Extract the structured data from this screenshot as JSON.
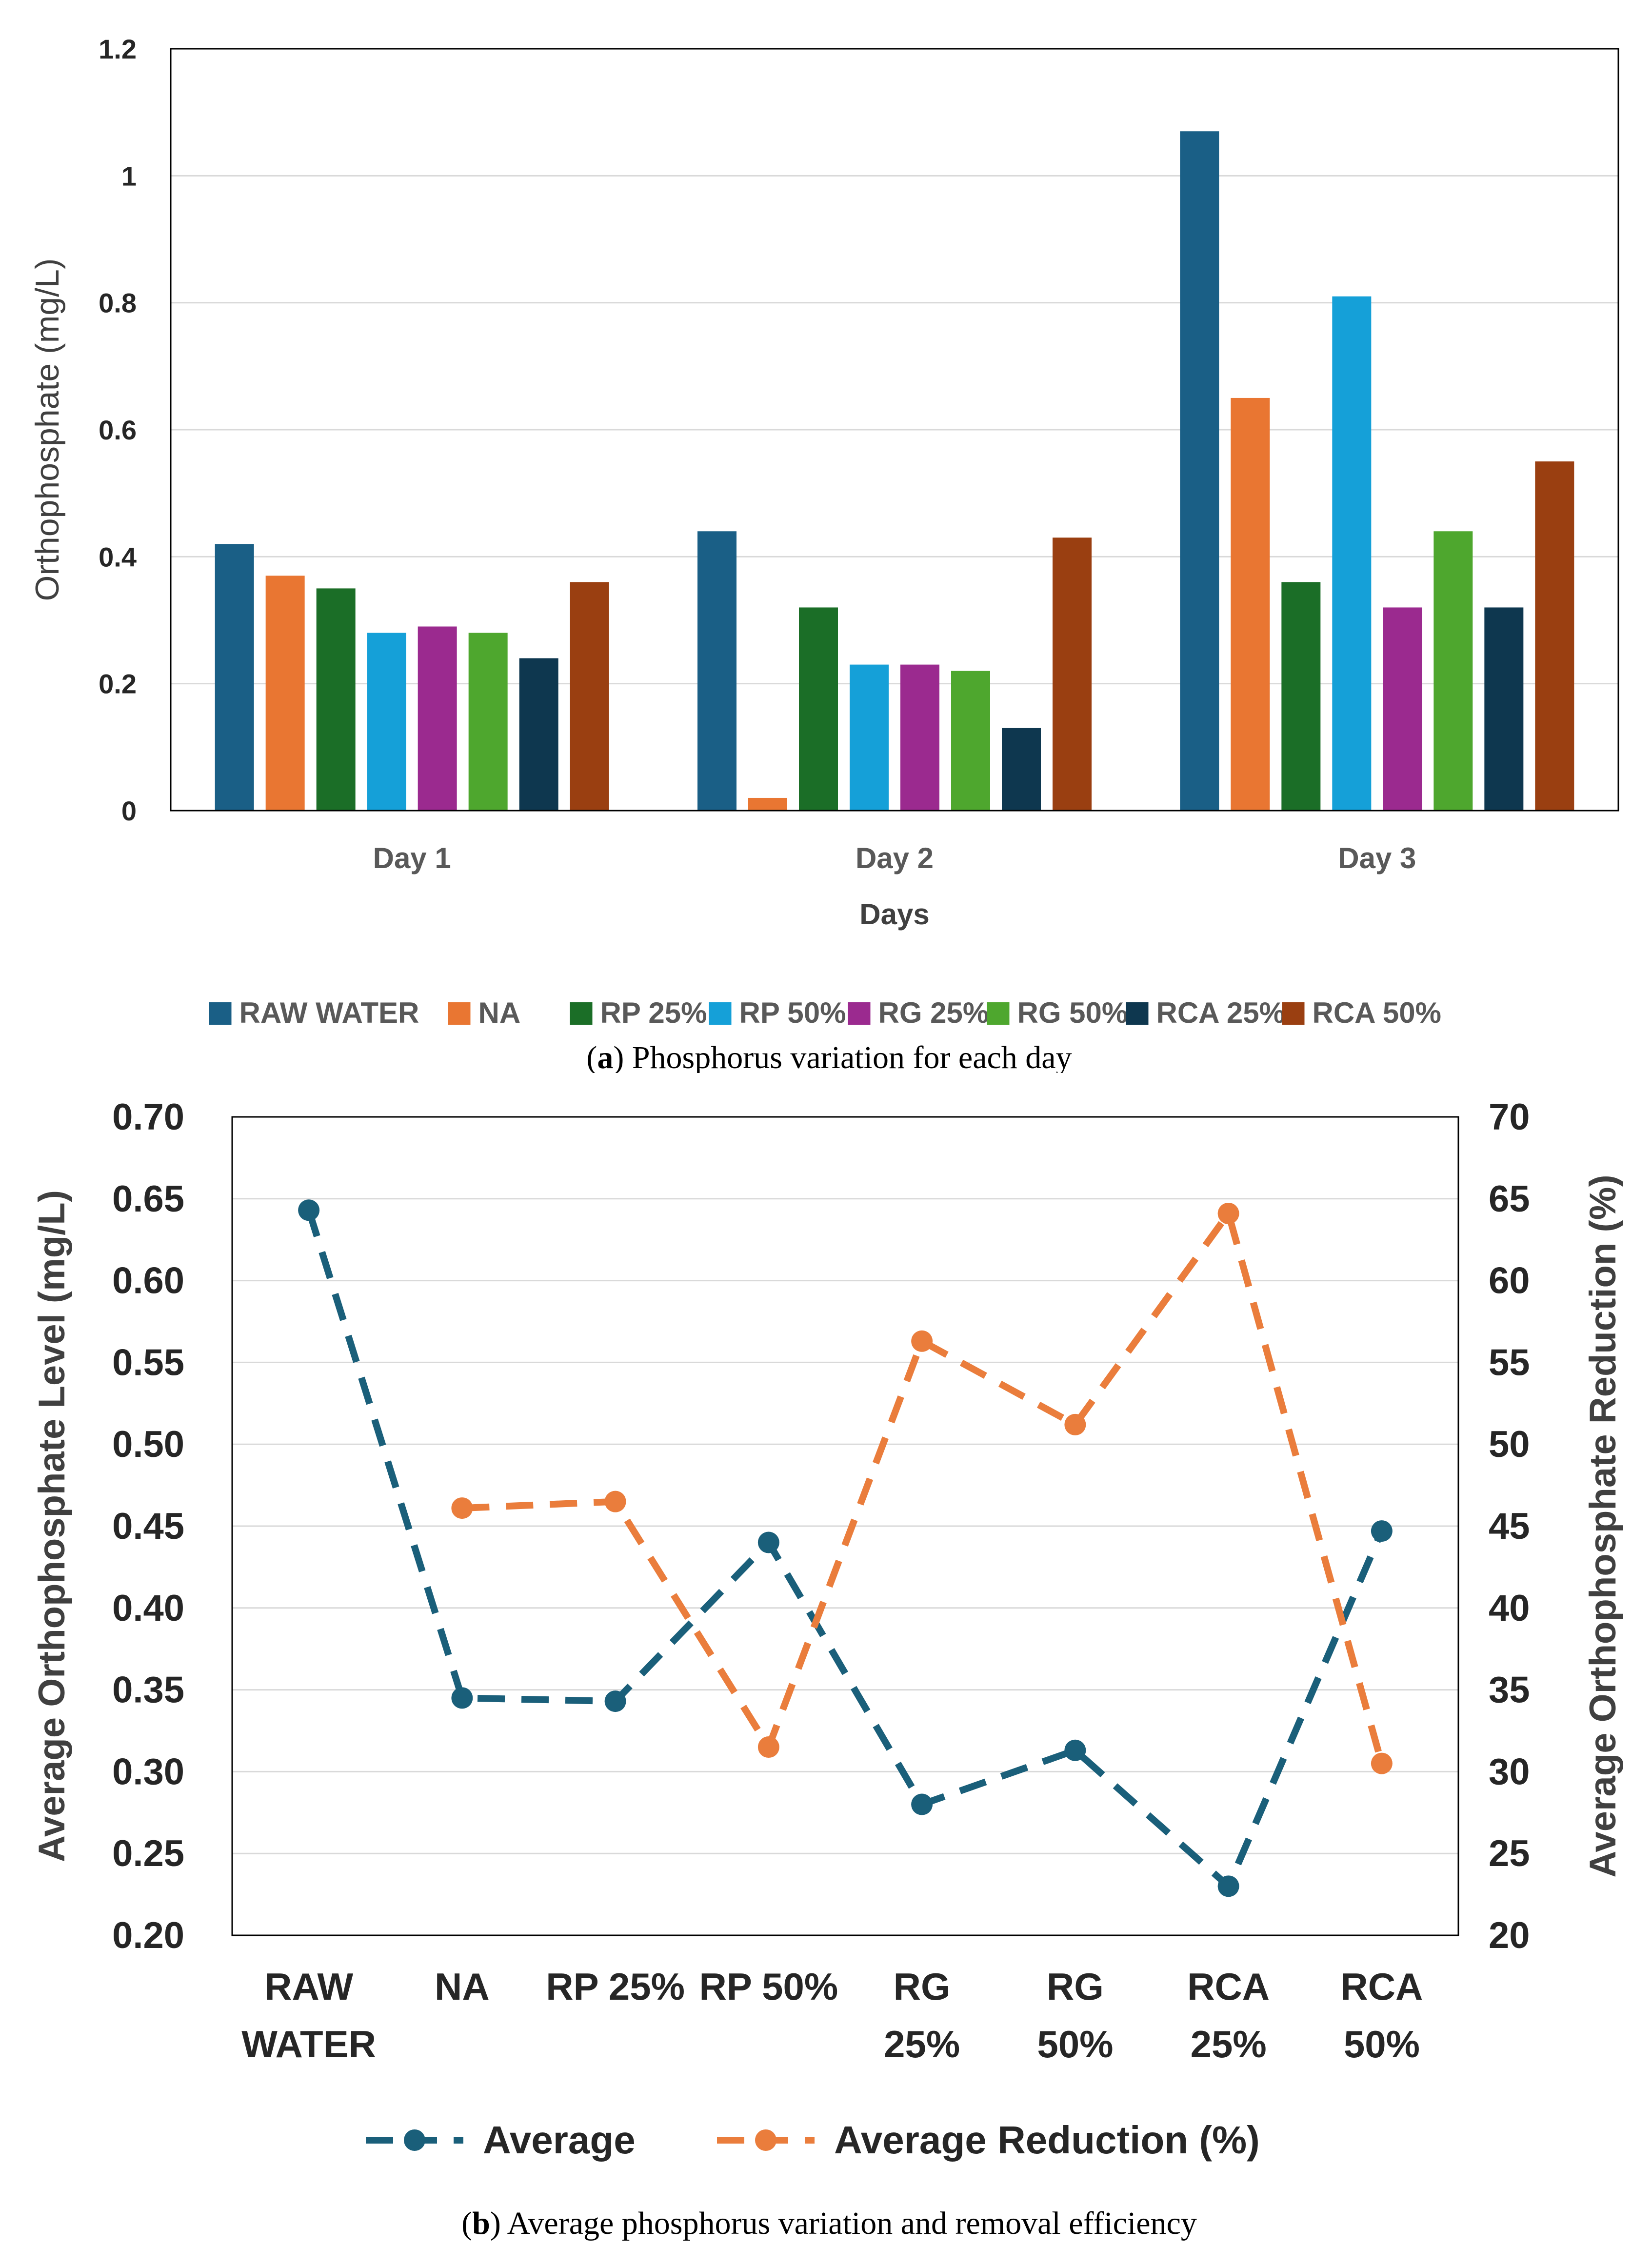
{
  "chart_data": [
    {
      "type": "bar",
      "xlabel": "Days",
      "ylabel": "Orthophosphate (mg/L)",
      "ylim": [
        0,
        1.2
      ],
      "yticks": [
        "0",
        "0.2",
        "0.4",
        "0.6",
        "0.8",
        "1",
        "1.2"
      ],
      "categories": [
        "Day 1",
        "Day 2",
        "Day 3"
      ],
      "grid": true,
      "legend": "bottom",
      "series": [
        {
          "name": "RAW WATER",
          "color": "#1a5f86",
          "values": [
            0.42,
            0.44,
            1.07
          ]
        },
        {
          "name": "NA",
          "color": "#e97632",
          "values": [
            0.37,
            0.02,
            0.65
          ]
        },
        {
          "name": "RP 25%",
          "color": "#1b6e27",
          "values": [
            0.35,
            0.32,
            0.36
          ]
        },
        {
          "name": "RP 50%",
          "color": "#15a0d8",
          "values": [
            0.28,
            0.23,
            0.81
          ]
        },
        {
          "name": "RG 25%",
          "color": "#9b2a8f",
          "values": [
            0.29,
            0.23,
            0.32
          ]
        },
        {
          "name": "RG 50%",
          "color": "#4ea72e",
          "values": [
            0.28,
            0.22,
            0.44
          ]
        },
        {
          "name": "RCA 25%",
          "color": "#0e374f",
          "values": [
            0.24,
            0.13,
            0.32
          ]
        },
        {
          "name": "RCA 50%",
          "color": "#9a3f11",
          "values": [
            0.36,
            0.43,
            0.55
          ]
        }
      ],
      "caption_prefix": "(",
      "caption_letter": "a",
      "caption_rest": ") Phosphorus variation for each day"
    },
    {
      "type": "line",
      "ylabel": "Average Orthophosphate Level (mg/L)",
      "y2label": "Average Orthophosphate Reduction (%)",
      "ylim": [
        0.2,
        0.7
      ],
      "y2lim": [
        20,
        70
      ],
      "yticks": [
        "0.20",
        "0.25",
        "0.30",
        "0.35",
        "0.40",
        "0.45",
        "0.50",
        "0.55",
        "0.60",
        "0.65",
        "0.70"
      ],
      "y2ticks": [
        "20",
        "25",
        "30",
        "35",
        "40",
        "45",
        "50",
        "55",
        "60",
        "65",
        "70"
      ],
      "categories": [
        [
          "RAW",
          "WATER"
        ],
        [
          "NA"
        ],
        [
          "RP 25%"
        ],
        [
          "RP 50%"
        ],
        [
          "RG",
          "25%"
        ],
        [
          "RG",
          "50%"
        ],
        [
          "RCA",
          "25%"
        ],
        [
          "RCA",
          "50%"
        ]
      ],
      "legend": "bottom",
      "series": [
        {
          "name": "Average",
          "axis": "left",
          "color": "#1a5f7a",
          "values": [
            0.643,
            0.345,
            0.343,
            0.44,
            0.28,
            0.313,
            0.23,
            0.447
          ]
        },
        {
          "name": "Average Reduction (%)",
          "axis": "right",
          "color": "#ea7d3c",
          "values": [
            null,
            46.1,
            46.5,
            31.5,
            56.3,
            51.2,
            64.1,
            30.5
          ]
        }
      ],
      "caption_prefix": "(",
      "caption_letter": "b",
      "caption_rest": ") Average phosphorus variation and removal efficiency"
    }
  ]
}
